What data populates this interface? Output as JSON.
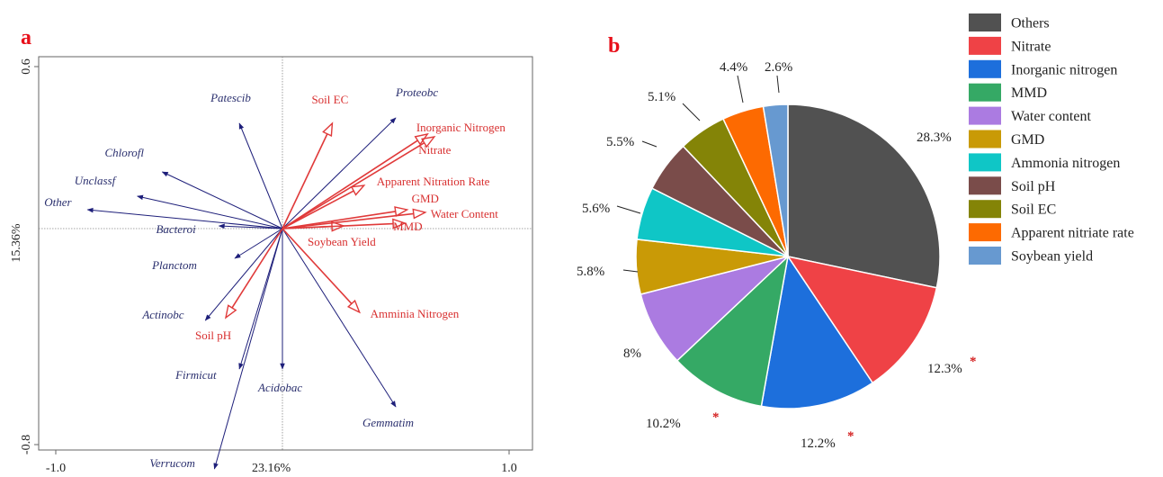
{
  "panel_a": {
    "label": "a",
    "x_axis_label": "23.16%",
    "y_axis_label": "15.36%",
    "x_ticks": [
      {
        "value": -1.0,
        "label": "-1.0"
      },
      {
        "value": 1.0,
        "label": "1.0"
      }
    ],
    "y_ticks": [
      {
        "value": 0.6,
        "label": "0.6"
      },
      {
        "value": -0.8,
        "label": "-0.8"
      }
    ]
  },
  "panel_b": {
    "label": "b"
  },
  "colors": {
    "panel_label": "#e8101a",
    "species_arrow": "#1e1f7a",
    "species_text": "#2a2f6e",
    "env_arrow": "#e03a3a",
    "env_text": "#d83030",
    "significance": "#d42020"
  },
  "chart_data": [
    {
      "type": "scatter",
      "subtype": "rda-biplot",
      "xlabel": "23.16%",
      "ylabel": "15.36%",
      "xlim": [
        -1.0,
        1.0
      ],
      "ylim": [
        -0.8,
        0.6
      ],
      "grid": false,
      "species": [
        {
          "name": "Patescib",
          "x": -0.19,
          "y": 0.39
        },
        {
          "name": "Proteobc",
          "x": 0.5,
          "y": 0.41
        },
        {
          "name": "Chlorofl",
          "x": -0.53,
          "y": 0.21
        },
        {
          "name": "Unclassf",
          "x": -0.64,
          "y": 0.12
        },
        {
          "name": "Other",
          "x": -0.86,
          "y": 0.07
        },
        {
          "name": "Bacteroi",
          "x": -0.28,
          "y": 0.01
        },
        {
          "name": "Planctom",
          "x": -0.21,
          "y": -0.11
        },
        {
          "name": "Actinobc",
          "x": -0.34,
          "y": -0.34
        },
        {
          "name": "Firmicut",
          "x": -0.19,
          "y": -0.52
        },
        {
          "name": "Acidobac",
          "x": 0.0,
          "y": -0.52
        },
        {
          "name": "Gemmatim",
          "x": 0.5,
          "y": -0.66
        },
        {
          "name": "Verrucom",
          "x": -0.3,
          "y": -0.89
        }
      ],
      "environment": [
        {
          "name": "Soil EC",
          "x": 0.22,
          "y": 0.39
        },
        {
          "name": "Inorganic Nitrogen",
          "x": 0.67,
          "y": 0.34
        },
        {
          "name": "Nitrate",
          "x": 0.64,
          "y": 0.35
        },
        {
          "name": "Apparent Nitration Rate",
          "x": 0.36,
          "y": 0.16
        },
        {
          "name": "GMD",
          "x": 0.55,
          "y": 0.07
        },
        {
          "name": "Water Content",
          "x": 0.63,
          "y": 0.06
        },
        {
          "name": "MMD",
          "x": 0.54,
          "y": 0.02
        },
        {
          "name": "Soybean Yield",
          "x": 0.27,
          "y": 0.01
        },
        {
          "name": "Amminia Nitrogen",
          "x": 0.34,
          "y": -0.31
        },
        {
          "name": "Soil pH",
          "x": -0.25,
          "y": -0.33
        }
      ]
    },
    {
      "type": "pie",
      "legend_position": "right",
      "start": "12 o'clock, clockwise",
      "slices": [
        {
          "name": "Others",
          "value": 28.3,
          "label": "28.3%",
          "color": "#515151",
          "significant": false
        },
        {
          "name": "Nitrate",
          "value": 12.3,
          "label": "12.3%",
          "color": "#ef4246",
          "significant": true
        },
        {
          "name": "Inorganic nitrogen",
          "value": 12.2,
          "label": "12.2%",
          "color": "#1d6fdc",
          "significant": true
        },
        {
          "name": "MMD",
          "value": 10.2,
          "label": "10.2%",
          "color": "#35a965",
          "significant": true
        },
        {
          "name": "Water content",
          "value": 8.0,
          "label": "8%",
          "color": "#ab7be1",
          "significant": false
        },
        {
          "name": "GMD",
          "value": 5.8,
          "label": "5.8%",
          "color": "#c99a06",
          "significant": false
        },
        {
          "name": "Ammonia nitrogen",
          "value": 5.6,
          "label": "5.6%",
          "color": "#0fc6c6",
          "significant": false
        },
        {
          "name": "Soil pH",
          "value": 5.5,
          "label": "5.5%",
          "color": "#7a4c4a",
          "significant": false
        },
        {
          "name": "Soil EC",
          "value": 5.1,
          "label": "5.1%",
          "color": "#848407",
          "significant": false
        },
        {
          "name": "Apparent nitriate rate",
          "value": 4.4,
          "label": "4.4%",
          "color": "#fd6a01",
          "significant": false
        },
        {
          "name": "Soybean yield",
          "value": 2.6,
          "label": "2.6%",
          "color": "#6799d0",
          "significant": false
        }
      ],
      "significance_marker": "*"
    }
  ]
}
